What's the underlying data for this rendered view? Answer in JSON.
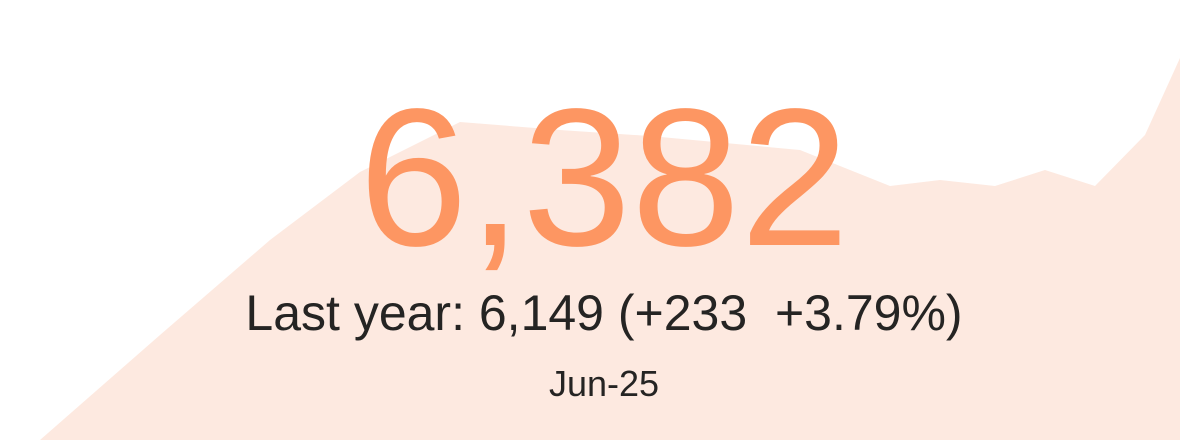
{
  "card": {
    "value": "6,382",
    "comparison": "Last year: 6,149 (+233  +3.79%)",
    "period": "Jun-25"
  }
}
